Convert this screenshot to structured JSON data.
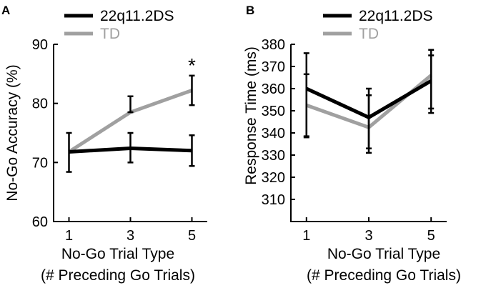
{
  "colors": {
    "ds": "#000000",
    "td": "#a0a0a0"
  },
  "chart_data": [
    {
      "panel": "A",
      "type": "line",
      "ylabel": "No-Go Accuracy (%)",
      "xlabel_line1": "No-Go Trial Type",
      "xlabel_line2": "(# Preceding Go Trials)",
      "x": [
        1,
        3,
        5
      ],
      "xticks": [
        "1",
        "3",
        "5"
      ],
      "ylim": [
        60,
        90
      ],
      "yticks": [
        60,
        70,
        80,
        90
      ],
      "ytick_labels": [
        "60",
        "70",
        "80",
        "90"
      ],
      "series": [
        {
          "key": "td",
          "name": "TD",
          "values": [
            71.8,
            78.5,
            82.2
          ],
          "err_low": [
            71.8,
            78.5,
            79.7
          ],
          "err_high": [
            71.8,
            81.2,
            84.7
          ]
        },
        {
          "key": "ds",
          "name": "22q11.2DS",
          "values": [
            71.8,
            72.4,
            72.0
          ],
          "err_low": [
            68.4,
            70.0,
            69.4
          ],
          "err_high": [
            75.0,
            75.0,
            74.6
          ]
        }
      ],
      "annotations": [
        {
          "x": 5,
          "y": 86.5,
          "text": "*"
        }
      ]
    },
    {
      "panel": "B",
      "type": "line",
      "ylabel": "Response Time (ms)",
      "xlabel_line1": "No-Go Trial Type",
      "xlabel_line2": "(# Preceding Go Trials)",
      "x": [
        1,
        3,
        5
      ],
      "xticks": [
        "1",
        "3",
        "5"
      ],
      "ylim": [
        300,
        380
      ],
      "yticks": [
        310,
        320,
        330,
        340,
        350,
        360,
        370,
        380
      ],
      "ytick_labels": [
        "310",
        "320",
        "330",
        "340",
        "350",
        "360",
        "370",
        "380"
      ],
      "series": [
        {
          "key": "td",
          "name": "TD",
          "values": [
            352.5,
            342.5,
            366.0
          ],
          "err_low": [
            338.0,
            331.0,
            351.0
          ],
          "err_high": [
            366.5,
            357.0,
            375.0
          ]
        },
        {
          "key": "ds",
          "name": "22q11.2DS",
          "values": [
            360.0,
            347.0,
            363.5
          ],
          "err_low": [
            338.5,
            333.0,
            349.0
          ],
          "err_high": [
            376.0,
            360.0,
            377.5
          ]
        }
      ],
      "annotations": []
    }
  ]
}
